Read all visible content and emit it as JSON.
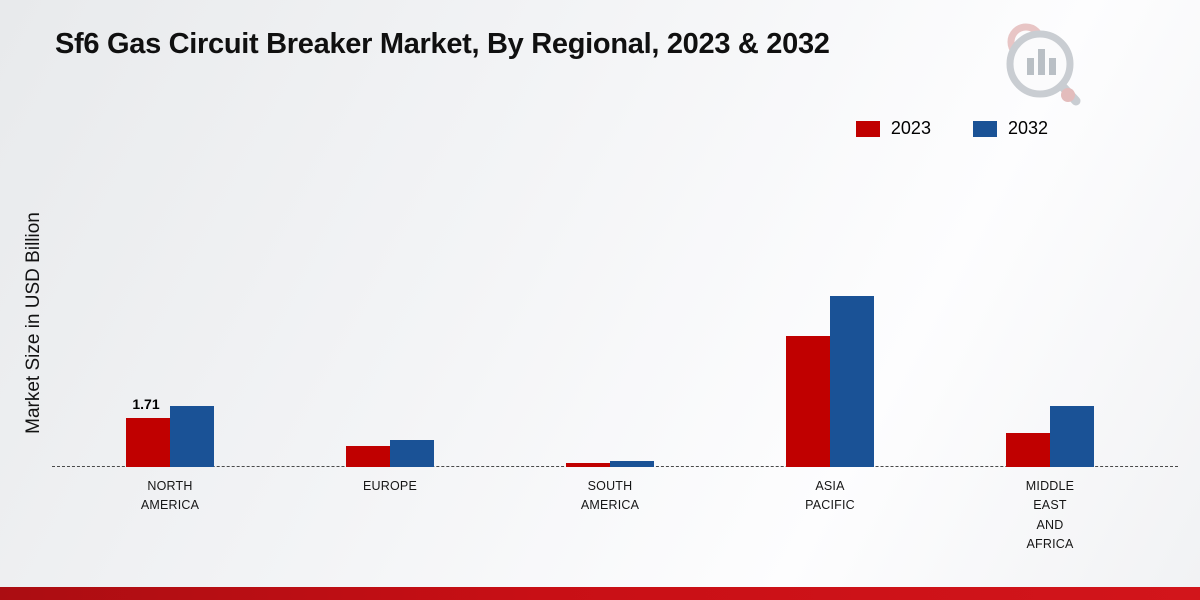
{
  "title": "Sf6 Gas Circuit Breaker Market, By Regional, 2023 & 2032",
  "y_axis_label": "Market Size in USD Billion",
  "legend": [
    {
      "label": "2023",
      "color": "#c00000"
    },
    {
      "label": "2032",
      "color": "#1a5296"
    }
  ],
  "chart_data": {
    "type": "bar",
    "title": "Sf6 Gas Circuit Breaker Market, By Regional, 2023 & 2032",
    "ylabel": "Market Size in USD Billion",
    "ylim": [
      0,
      6.5
    ],
    "grid": false,
    "legend_position": "top-right",
    "categories": [
      "NORTH AMERICA",
      "EUROPE",
      "SOUTH AMERICA",
      "ASIA PACIFIC",
      "MIDDLE EAST AND AFRICA"
    ],
    "category_lines": [
      [
        "NORTH",
        "AMERICA"
      ],
      [
        "EUROPE"
      ],
      [
        "SOUTH",
        "AMERICA"
      ],
      [
        "ASIA",
        "PACIFIC"
      ],
      [
        "MIDDLE",
        "EAST",
        "AND",
        "AFRICA"
      ]
    ],
    "series": [
      {
        "name": "2023",
        "color": "#c00000",
        "values": [
          1.71,
          0.75,
          0.15,
          4.6,
          1.2
        ]
      },
      {
        "name": "2032",
        "color": "#1a5296",
        "values": [
          2.15,
          0.95,
          0.22,
          6.0,
          2.15
        ]
      }
    ],
    "value_labels": [
      {
        "series": 0,
        "category": 0,
        "text": "1.71"
      }
    ]
  }
}
